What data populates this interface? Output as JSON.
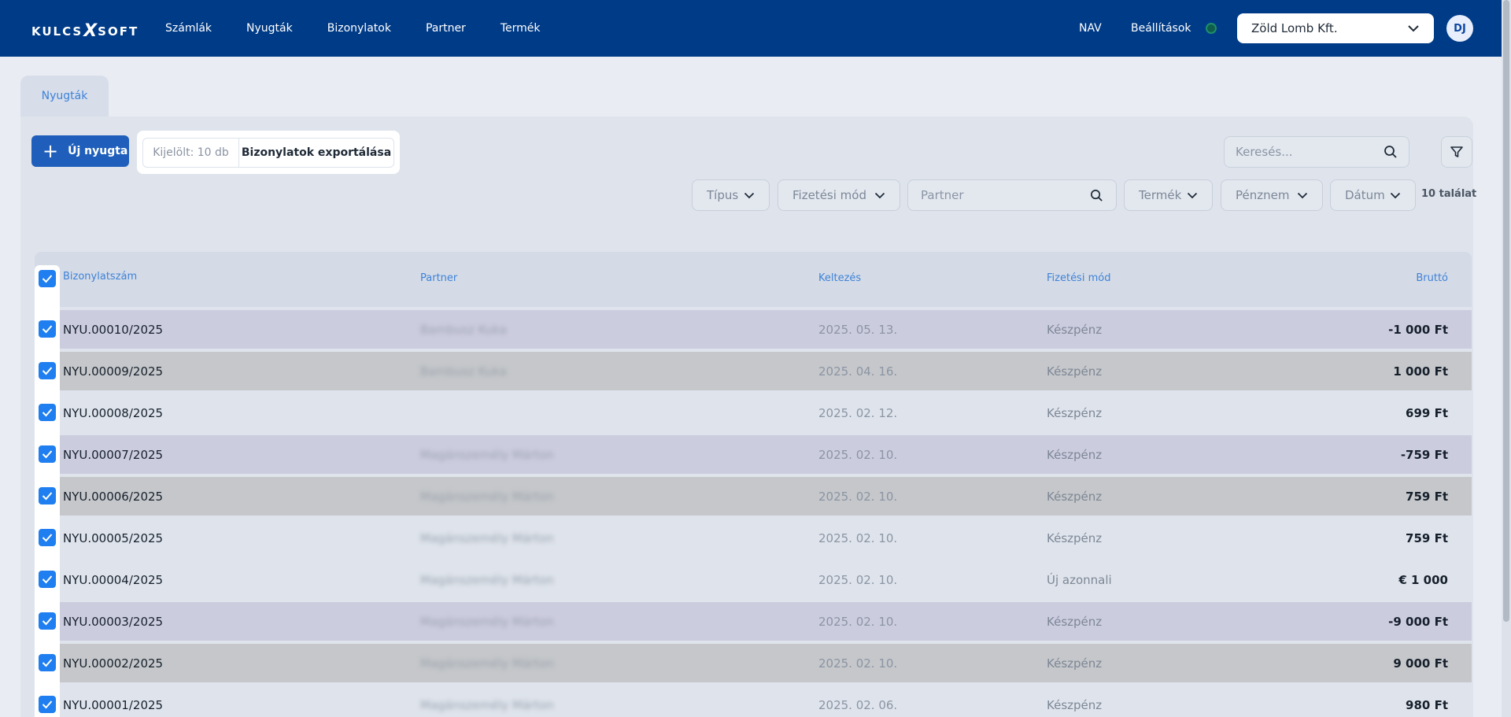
{
  "app": {
    "logo_text_left": "KULCS",
    "logo_text_mark": "X",
    "logo_text_right": "SOFT"
  },
  "nav": {
    "items": [
      "Számlák",
      "Nyugták",
      "Bizonylatok",
      "Partner",
      "Termék"
    ],
    "nav_label": "NAV",
    "settings_label": "Beállítások",
    "status_color": "#1d8f6c",
    "company": "Zöld Lomb Kft.",
    "avatar": "DJ"
  },
  "tabs": [
    {
      "label": "Nyugták",
      "active": true
    }
  ],
  "toolbar": {
    "new_button": "Új nyugta",
    "selected_count": "Kijelölt: 10 db",
    "export_button": "Bizonylatok exportálása",
    "search_placeholder": "Keresés..."
  },
  "filters": {
    "type": "Típus",
    "payment": "Fizetési mód",
    "partner_placeholder": "Partner",
    "product": "Termék",
    "currency": "Pénznem",
    "date": "Dátum",
    "results": "10 találat"
  },
  "table": {
    "headers": {
      "number": "Bizonylatszám",
      "partner": "Partner",
      "date": "Keltezés",
      "payment": "Fizetési mód",
      "gross": "Bruttó"
    },
    "all_selected": true,
    "rows": [
      {
        "number": "NYU.00010/2025",
        "partner": "Bambusz Kuka",
        "date": "2025. 05. 13.",
        "payment": "Készpénz",
        "gross": "-1 000 Ft",
        "bg": "#ccccdf",
        "selected": true
      },
      {
        "number": "NYU.00009/2025",
        "partner": "Bambusz Kuka",
        "date": "2025. 04. 16.",
        "payment": "Készpénz",
        "gross": "1 000 Ft",
        "bg": "#c5c7ca",
        "selected": true
      },
      {
        "number": "NYU.00008/2025",
        "partner": "",
        "date": "2025. 02. 12.",
        "payment": "Készpénz",
        "gross": "699 Ft",
        "bg": "#dfe4ec",
        "selected": true
      },
      {
        "number": "NYU.00007/2025",
        "partner": "Magánszemély Márton",
        "date": "2025. 02. 10.",
        "payment": "Készpénz",
        "gross": "-759 Ft",
        "bg": "#ccccdf",
        "selected": true
      },
      {
        "number": "NYU.00006/2025",
        "partner": "Magánszemély Márton",
        "date": "2025. 02. 10.",
        "payment": "Készpénz",
        "gross": "759 Ft",
        "bg": "#c5c7ca",
        "selected": true
      },
      {
        "number": "NYU.00005/2025",
        "partner": "Magánszemély Márton",
        "date": "2025. 02. 10.",
        "payment": "Készpénz",
        "gross": "759 Ft",
        "bg": "#dfe4ec",
        "selected": true
      },
      {
        "number": "NYU.00004/2025",
        "partner": "Magánszemély Márton",
        "date": "2025. 02. 10.",
        "payment": "Új azonnali",
        "gross": "€ 1 000",
        "bg": "#dfe4ec",
        "selected": true
      },
      {
        "number": "NYU.00003/2025",
        "partner": "Magánszemély Márton",
        "date": "2025. 02. 10.",
        "payment": "Készpénz",
        "gross": "-9 000 Ft",
        "bg": "#ccccdf",
        "selected": true
      },
      {
        "number": "NYU.00002/2025",
        "partner": "Magánszemély Márton",
        "date": "2025. 02. 10.",
        "payment": "Készpénz",
        "gross": "9 000 Ft",
        "bg": "#c5c7ca",
        "selected": true
      },
      {
        "number": "NYU.00001/2025",
        "partner": "Magánszemély Márton",
        "date": "2025. 02. 06.",
        "payment": "Készpénz",
        "gross": "980 Ft",
        "bg": "#dfe4ec",
        "selected": true
      }
    ]
  },
  "colors": {
    "navbar": "#003b87",
    "primary": "#1f5fbb",
    "link": "#3f82d8",
    "checkbox": "#1f7ef0"
  }
}
